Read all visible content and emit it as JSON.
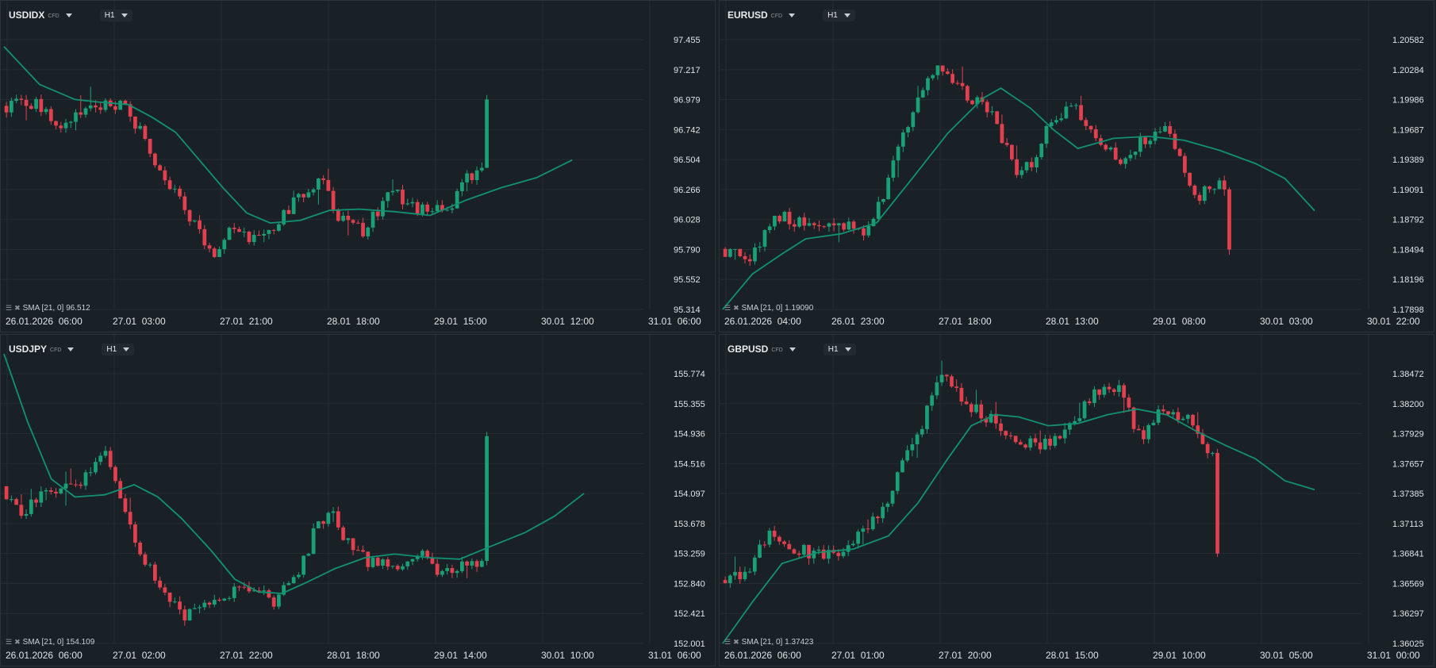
{
  "colors": {
    "up": "#1aa077",
    "down": "#e2404f",
    "sma": "#129172",
    "grid": "#252d33",
    "axis_text": "#dfe3e6"
  },
  "icons": {
    "legend_toggle": "list-icon",
    "legend_close": "close-icon",
    "dropdown": "chevron-down-icon"
  },
  "chart_data": [
    {
      "type": "candlestick",
      "symbol": "USDIDX",
      "instrument_type": "CFD",
      "timeframe": "H1",
      "sma_label": "SMA [21, 0]",
      "sma_value": "96.512",
      "y_ticks": [
        "97.455",
        "97.217",
        "96.979",
        "96.742",
        "96.504",
        "96.266",
        "96.028",
        "95.790",
        "95.552",
        "95.314"
      ],
      "ylim": [
        95.314,
        97.455
      ],
      "x_ticks": [
        "26.01.2026  06:00",
        "27.01  03:00",
        "27.01  21:00",
        "28.01  18:00",
        "29.01  15:00",
        "30.01  12:00",
        "31.01  06:00"
      ],
      "last_close": 96.98,
      "sma_points": [
        [
          0,
          97.4
        ],
        [
          0.06,
          97.1
        ],
        [
          0.12,
          96.98
        ],
        [
          0.16,
          96.96
        ],
        [
          0.21,
          96.94
        ],
        [
          0.25,
          96.84
        ],
        [
          0.29,
          96.72
        ],
        [
          0.33,
          96.5
        ],
        [
          0.37,
          96.28
        ],
        [
          0.41,
          96.08
        ],
        [
          0.45,
          96.0
        ],
        [
          0.5,
          96.02
        ],
        [
          0.55,
          96.1
        ],
        [
          0.6,
          96.11
        ],
        [
          0.66,
          96.09
        ],
        [
          0.72,
          96.06
        ],
        [
          0.78,
          96.18
        ],
        [
          0.84,
          96.28
        ],
        [
          0.9,
          96.36
        ],
        [
          0.96,
          96.5
        ]
      ],
      "close_path": [
        [
          0,
          96.93
        ],
        [
          0.06,
          96.94
        ],
        [
          0.1,
          96.77
        ],
        [
          0.16,
          96.9
        ],
        [
          0.21,
          96.96
        ],
        [
          0.24,
          96.66
        ],
        [
          0.28,
          96.32
        ],
        [
          0.32,
          96.03
        ],
        [
          0.36,
          95.75
        ],
        [
          0.38,
          95.92
        ],
        [
          0.42,
          95.9
        ],
        [
          0.46,
          95.98
        ],
        [
          0.5,
          96.2
        ],
        [
          0.54,
          96.36
        ],
        [
          0.57,
          96.02
        ],
        [
          0.61,
          95.94
        ],
        [
          0.66,
          96.25
        ],
        [
          0.7,
          96.12
        ],
        [
          0.75,
          96.08
        ],
        [
          0.79,
          96.38
        ],
        [
          0.84,
          96.52
        ],
        [
          0.88,
          96.32
        ],
        [
          0.93,
          96.7
        ],
        [
          0.98,
          96.98
        ]
      ]
    },
    {
      "type": "candlestick",
      "symbol": "EURUSD",
      "instrument_type": "CFD",
      "timeframe": "H1",
      "sma_label": "SMA [21, 0]",
      "sma_value": "1.19090",
      "y_ticks": [
        "1.20582",
        "1.20284",
        "1.19986",
        "1.19687",
        "1.19389",
        "1.19091",
        "1.18792",
        "1.18494",
        "1.18196",
        "1.17898"
      ],
      "ylim": [
        1.17898,
        1.20582
      ],
      "x_ticks": [
        "26.01.2026  04:00",
        "26.01  23:00",
        "27.01  18:00",
        "28.01  13:00",
        "29.01  08:00",
        "30.01  03:00",
        "30.01  22:00"
      ],
      "last_close": 1.18494,
      "sma_points": [
        [
          0,
          1.17898
        ],
        [
          0.05,
          1.1825
        ],
        [
          0.1,
          1.1845
        ],
        [
          0.14,
          1.186
        ],
        [
          0.2,
          1.1865
        ],
        [
          0.26,
          1.1876
        ],
        [
          0.32,
          1.192
        ],
        [
          0.38,
          1.1965
        ],
        [
          0.44,
          1.2
        ],
        [
          0.47,
          1.201
        ],
        [
          0.52,
          1.199
        ],
        [
          0.56,
          1.1968
        ],
        [
          0.6,
          1.195
        ],
        [
          0.66,
          1.196
        ],
        [
          0.72,
          1.1962
        ],
        [
          0.78,
          1.1958
        ],
        [
          0.84,
          1.1948
        ],
        [
          0.9,
          1.1935
        ],
        [
          0.95,
          1.192
        ],
        [
          1.0,
          1.1888
        ]
      ],
      "close_path": [
        [
          0,
          1.185
        ],
        [
          0.05,
          1.1838
        ],
        [
          0.09,
          1.1885
        ],
        [
          0.12,
          1.188
        ],
        [
          0.16,
          1.187
        ],
        [
          0.2,
          1.1875
        ],
        [
          0.25,
          1.1867
        ],
        [
          0.28,
          1.1912
        ],
        [
          0.31,
          1.197
        ],
        [
          0.34,
          1.2
        ],
        [
          0.37,
          1.204
        ],
        [
          0.39,
          1.2015
        ],
        [
          0.42,
          1.2
        ],
        [
          0.46,
          1.1985
        ],
        [
          0.5,
          1.1925
        ],
        [
          0.53,
          1.1935
        ],
        [
          0.56,
          1.1982
        ],
        [
          0.6,
          1.1988
        ],
        [
          0.64,
          1.1952
        ],
        [
          0.68,
          1.1938
        ],
        [
          0.72,
          1.196
        ],
        [
          0.76,
          1.197
        ],
        [
          0.8,
          1.19
        ],
        [
          0.84,
          1.1915
        ],
        [
          0.88,
          1.1918
        ],
        [
          0.91,
          1.1935
        ],
        [
          0.95,
          1.1875
        ],
        [
          1.0,
          1.1849
        ]
      ]
    },
    {
      "type": "candlestick",
      "symbol": "USDJPY",
      "instrument_type": "CFD",
      "timeframe": "H1",
      "sma_label": "SMA [21, 0]",
      "sma_value": "154.109",
      "y_ticks": [
        "155.774",
        "155.355",
        "154.936",
        "154.516",
        "154.097",
        "153.678",
        "153.259",
        "152.840",
        "152.421",
        "152.001"
      ],
      "ylim": [
        152.001,
        155.774
      ],
      "x_ticks": [
        "26.01.2026  06:00",
        "27.01  02:00",
        "27.01  22:00",
        "28.01  18:00",
        "29.01  14:00",
        "30.01  10:00",
        "31.01  06:00"
      ],
      "last_close": 154.9,
      "sma_points": [
        [
          0,
          156.05
        ],
        [
          0.04,
          155.1
        ],
        [
          0.08,
          154.3
        ],
        [
          0.12,
          154.05
        ],
        [
          0.17,
          154.08
        ],
        [
          0.22,
          154.22
        ],
        [
          0.26,
          154.05
        ],
        [
          0.3,
          153.75
        ],
        [
          0.35,
          153.3
        ],
        [
          0.39,
          152.9
        ],
        [
          0.43,
          152.72
        ],
        [
          0.47,
          152.7
        ],
        [
          0.51,
          152.85
        ],
        [
          0.56,
          153.05
        ],
        [
          0.61,
          153.2
        ],
        [
          0.66,
          153.25
        ],
        [
          0.72,
          153.2
        ],
        [
          0.77,
          153.18
        ],
        [
          0.82,
          153.35
        ],
        [
          0.88,
          153.55
        ],
        [
          0.93,
          153.78
        ],
        [
          0.98,
          154.1
        ]
      ],
      "close_path": [
        [
          0,
          154.2
        ],
        [
          0.03,
          153.8
        ],
        [
          0.06,
          154.05
        ],
        [
          0.1,
          154.1
        ],
        [
          0.14,
          154.3
        ],
        [
          0.18,
          154.65
        ],
        [
          0.2,
          154.05
        ],
        [
          0.23,
          153.3
        ],
        [
          0.27,
          152.85
        ],
        [
          0.31,
          152.35
        ],
        [
          0.34,
          152.6
        ],
        [
          0.38,
          152.7
        ],
        [
          0.42,
          152.75
        ],
        [
          0.46,
          152.6
        ],
        [
          0.5,
          152.9
        ],
        [
          0.53,
          153.6
        ],
        [
          0.56,
          153.85
        ],
        [
          0.59,
          153.3
        ],
        [
          0.63,
          153.1
        ],
        [
          0.67,
          153.05
        ],
        [
          0.71,
          153.3
        ],
        [
          0.74,
          153.0
        ],
        [
          0.78,
          153.1
        ],
        [
          0.82,
          153.1
        ],
        [
          0.85,
          153.55
        ],
        [
          0.88,
          153.8
        ],
        [
          0.91,
          153.8
        ],
        [
          0.94,
          154.3
        ],
        [
          0.98,
          154.9
        ]
      ]
    },
    {
      "type": "candlestick",
      "symbol": "GBPUSD",
      "instrument_type": "CFD",
      "timeframe": "H1",
      "sma_label": "SMA [21, 0]",
      "sma_value": "1.37423",
      "y_ticks": [
        "1.38472",
        "1.38200",
        "1.37929",
        "1.37657",
        "1.37385",
        "1.37113",
        "1.36841",
        "1.36569",
        "1.36297",
        "1.36025"
      ],
      "ylim": [
        1.36025,
        1.38472
      ],
      "x_ticks": [
        "26.01.2026  06:00",
        "27.01  01:00",
        "27.01  20:00",
        "28.01  15:00",
        "29.01  10:00",
        "30.01  05:00",
        "31.01  00:00"
      ],
      "last_close": 1.36841,
      "sma_points": [
        [
          0,
          1.36025
        ],
        [
          0.05,
          1.364
        ],
        [
          0.1,
          1.3675
        ],
        [
          0.16,
          1.3685
        ],
        [
          0.22,
          1.3688
        ],
        [
          0.28,
          1.37
        ],
        [
          0.33,
          1.373
        ],
        [
          0.38,
          1.377
        ],
        [
          0.42,
          1.38
        ],
        [
          0.46,
          1.381
        ],
        [
          0.5,
          1.3808
        ],
        [
          0.55,
          1.38
        ],
        [
          0.6,
          1.3802
        ],
        [
          0.65,
          1.381
        ],
        [
          0.7,
          1.3815
        ],
        [
          0.75,
          1.381
        ],
        [
          0.8,
          1.3795
        ],
        [
          0.85,
          1.3782
        ],
        [
          0.9,
          1.377
        ],
        [
          0.95,
          1.375
        ],
        [
          1.0,
          1.3742
        ]
      ],
      "close_path": [
        [
          0,
          1.366
        ],
        [
          0.04,
          1.3665
        ],
        [
          0.08,
          1.37
        ],
        [
          0.11,
          1.3692
        ],
        [
          0.15,
          1.3685
        ],
        [
          0.19,
          1.3685
        ],
        [
          0.22,
          1.369
        ],
        [
          0.25,
          1.3712
        ],
        [
          0.28,
          1.373
        ],
        [
          0.31,
          1.377
        ],
        [
          0.34,
          1.38
        ],
        [
          0.37,
          1.385
        ],
        [
          0.4,
          1.383
        ],
        [
          0.43,
          1.3815
        ],
        [
          0.47,
          1.38
        ],
        [
          0.51,
          1.3782
        ],
        [
          0.55,
          1.3785
        ],
        [
          0.59,
          1.38
        ],
        [
          0.63,
          1.383
        ],
        [
          0.67,
          1.3835
        ],
        [
          0.71,
          1.379
        ],
        [
          0.75,
          1.3815
        ],
        [
          0.79,
          1.3805
        ],
        [
          0.83,
          1.377
        ],
        [
          0.86,
          1.3762
        ],
        [
          0.89,
          1.3765
        ],
        [
          0.92,
          1.3772
        ],
        [
          0.95,
          1.374
        ],
        [
          0.98,
          1.3705
        ],
        [
          1.0,
          1.3684
        ]
      ]
    }
  ]
}
